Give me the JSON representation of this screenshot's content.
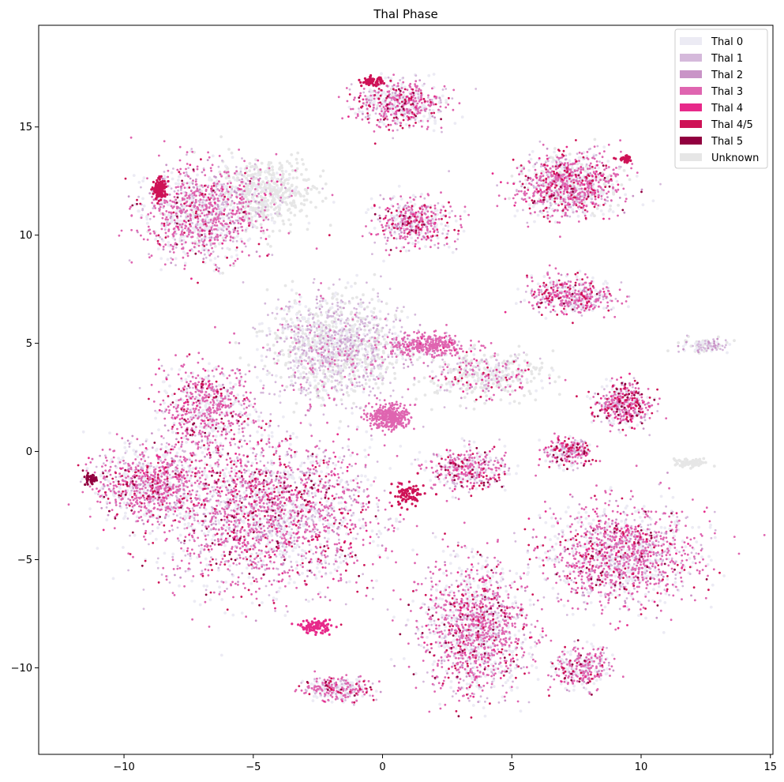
{
  "chart_data": {
    "type": "scatter",
    "title": "Thal Phase",
    "xlabel": "",
    "ylabel": "",
    "xlim": [
      -13.3,
      15.1
    ],
    "ylim": [
      -14.0,
      19.7
    ],
    "xticks": [
      -10,
      -5,
      0,
      5,
      10,
      15
    ],
    "xtick_labels": [
      "−10",
      "−5",
      "0",
      "5",
      "10",
      "15"
    ],
    "yticks": [
      -10,
      -5,
      0,
      5,
      10,
      15
    ],
    "ytick_labels": [
      "−10",
      "−5",
      "0",
      "5",
      "10",
      "15"
    ],
    "grid": false,
    "legend_position": "top-right",
    "categories": [
      {
        "label": "Thal 0",
        "color": "#ecebf4"
      },
      {
        "label": "Thal 1",
        "color": "#d5b9db"
      },
      {
        "label": "Thal 2",
        "color": "#c994c7"
      },
      {
        "label": "Thal 3",
        "color": "#df65b0"
      },
      {
        "label": "Thal 4",
        "color": "#e7298a"
      },
      {
        "label": "Thal 4/5",
        "color": "#ce1256"
      },
      {
        "label": "Thal 5",
        "color": "#91003f"
      },
      {
        "label": "Unknown",
        "color": "#e6e6e6"
      }
    ],
    "clusters": [
      {
        "cx": -4.5,
        "cy": -2.8,
        "sx": 3.8,
        "sy": 3.2,
        "n": 2600,
        "w": [
          0.26,
          0.18,
          0.07,
          0.37,
          0.03,
          0.06,
          0.03,
          0.0
        ]
      },
      {
        "cx": -9.0,
        "cy": -1.5,
        "sx": 1.9,
        "sy": 1.5,
        "n": 900,
        "w": [
          0.25,
          0.12,
          0.05,
          0.43,
          0.04,
          0.08,
          0.03,
          0.0
        ]
      },
      {
        "cx": -6.8,
        "cy": 2.0,
        "sx": 1.6,
        "sy": 1.9,
        "n": 700,
        "w": [
          0.24,
          0.12,
          0.06,
          0.45,
          0.03,
          0.07,
          0.03,
          0.0
        ]
      },
      {
        "cx": -7.0,
        "cy": 11.0,
        "sx": 2.1,
        "sy": 2.0,
        "n": 1200,
        "w": [
          0.24,
          0.18,
          0.06,
          0.37,
          0.02,
          0.05,
          0.02,
          0.06
        ]
      },
      {
        "cx": -4.5,
        "cy": 12.0,
        "sx": 1.6,
        "sy": 1.3,
        "n": 500,
        "w": [
          0.06,
          0.03,
          0.02,
          0.04,
          0.0,
          0.0,
          0.0,
          0.85
        ]
      },
      {
        "cx": -1.8,
        "cy": 4.8,
        "sx": 2.4,
        "sy": 2.2,
        "n": 1400,
        "w": [
          0.14,
          0.33,
          0.05,
          0.08,
          0.0,
          0.0,
          0.0,
          0.4
        ]
      },
      {
        "cx": 0.3,
        "cy": 1.6,
        "sx": 0.7,
        "sy": 0.5,
        "n": 380,
        "w": [
          0.0,
          0.0,
          0.0,
          1.0,
          0.0,
          0.0,
          0.0,
          0.0
        ]
      },
      {
        "cx": 1.8,
        "cy": 4.9,
        "sx": 1.4,
        "sy": 0.45,
        "n": 350,
        "w": [
          0.02,
          0.05,
          0.03,
          0.88,
          0.02,
          0.0,
          0.0,
          0.0
        ]
      },
      {
        "cx": 0.7,
        "cy": 16.1,
        "sx": 1.6,
        "sy": 1.0,
        "n": 600,
        "w": [
          0.24,
          0.18,
          0.05,
          0.33,
          0.05,
          0.1,
          0.02,
          0.03
        ]
      },
      {
        "cx": 1.2,
        "cy": 10.6,
        "sx": 1.3,
        "sy": 1.0,
        "n": 500,
        "w": [
          0.22,
          0.2,
          0.06,
          0.38,
          0.04,
          0.08,
          0.02,
          0.0
        ]
      },
      {
        "cx": 7.2,
        "cy": 12.3,
        "sx": 1.8,
        "sy": 1.3,
        "n": 1100,
        "w": [
          0.18,
          0.14,
          0.05,
          0.34,
          0.05,
          0.09,
          0.02,
          0.13
        ]
      },
      {
        "cx": 7.3,
        "cy": 7.2,
        "sx": 1.5,
        "sy": 0.8,
        "n": 500,
        "w": [
          0.25,
          0.18,
          0.05,
          0.38,
          0.04,
          0.08,
          0.02,
          0.0
        ]
      },
      {
        "cx": 4.0,
        "cy": 3.5,
        "sx": 2.0,
        "sy": 1.0,
        "n": 450,
        "w": [
          0.1,
          0.12,
          0.03,
          0.18,
          0.02,
          0.03,
          0.0,
          0.52
        ]
      },
      {
        "cx": 9.3,
        "cy": 2.2,
        "sx": 1.0,
        "sy": 0.9,
        "n": 450,
        "w": [
          0.2,
          0.13,
          0.05,
          0.38,
          0.05,
          0.13,
          0.06,
          0.0
        ]
      },
      {
        "cx": 7.2,
        "cy": 0.0,
        "sx": 0.8,
        "sy": 0.6,
        "n": 260,
        "w": [
          0.22,
          0.12,
          0.05,
          0.38,
          0.05,
          0.12,
          0.06,
          0.0
        ]
      },
      {
        "cx": 3.3,
        "cy": -0.8,
        "sx": 1.4,
        "sy": 0.9,
        "n": 420,
        "w": [
          0.24,
          0.14,
          0.05,
          0.4,
          0.04,
          0.09,
          0.04,
          0.0
        ]
      },
      {
        "cx": 3.6,
        "cy": -8.2,
        "sx": 1.9,
        "sy": 2.7,
        "n": 1500,
        "w": [
          0.28,
          0.14,
          0.05,
          0.4,
          0.03,
          0.07,
          0.03,
          0.0
        ]
      },
      {
        "cx": 9.3,
        "cy": -4.8,
        "sx": 2.6,
        "sy": 2.1,
        "n": 1500,
        "w": [
          0.28,
          0.14,
          0.05,
          0.4,
          0.03,
          0.07,
          0.03,
          0.0
        ]
      },
      {
        "cx": 7.7,
        "cy": -10.0,
        "sx": 1.0,
        "sy": 0.9,
        "n": 320,
        "w": [
          0.28,
          0.14,
          0.05,
          0.4,
          0.03,
          0.07,
          0.03,
          0.0
        ]
      },
      {
        "cx": -1.8,
        "cy": -11.0,
        "sx": 1.2,
        "sy": 0.5,
        "n": 300,
        "w": [
          0.28,
          0.14,
          0.05,
          0.4,
          0.03,
          0.07,
          0.03,
          0.0
        ]
      },
      {
        "cx": 12.5,
        "cy": 4.9,
        "sx": 0.8,
        "sy": 0.3,
        "n": 120,
        "w": [
          0.2,
          0.2,
          0.2,
          0.0,
          0.0,
          0.0,
          0.0,
          0.4
        ]
      },
      {
        "cx": 11.9,
        "cy": -0.5,
        "sx": 0.6,
        "sy": 0.15,
        "n": 70,
        "w": [
          0.0,
          0.0,
          0.0,
          0.0,
          0.0,
          0.0,
          0.0,
          1.0
        ]
      }
    ],
    "dense_patches": [
      {
        "cx": -8.6,
        "cy": 12.1,
        "sx": 0.25,
        "sy": 0.45,
        "n": 140,
        "color": "#ce1256"
      },
      {
        "cx": -2.6,
        "cy": -8.1,
        "sx": 0.6,
        "sy": 0.3,
        "n": 110,
        "color": "#e7298a"
      },
      {
        "cx": -0.4,
        "cy": 17.1,
        "sx": 0.4,
        "sy": 0.2,
        "n": 70,
        "color": "#ce1256"
      },
      {
        "cx": 9.4,
        "cy": 13.5,
        "sx": 0.3,
        "sy": 0.15,
        "n": 40,
        "color": "#ce1256"
      },
      {
        "cx": 1.0,
        "cy": -2.0,
        "sx": 0.6,
        "sy": 0.6,
        "n": 90,
        "color": "#ce1256"
      },
      {
        "cx": -11.3,
        "cy": -1.3,
        "sx": 0.25,
        "sy": 0.25,
        "n": 40,
        "color": "#91003f"
      }
    ]
  }
}
